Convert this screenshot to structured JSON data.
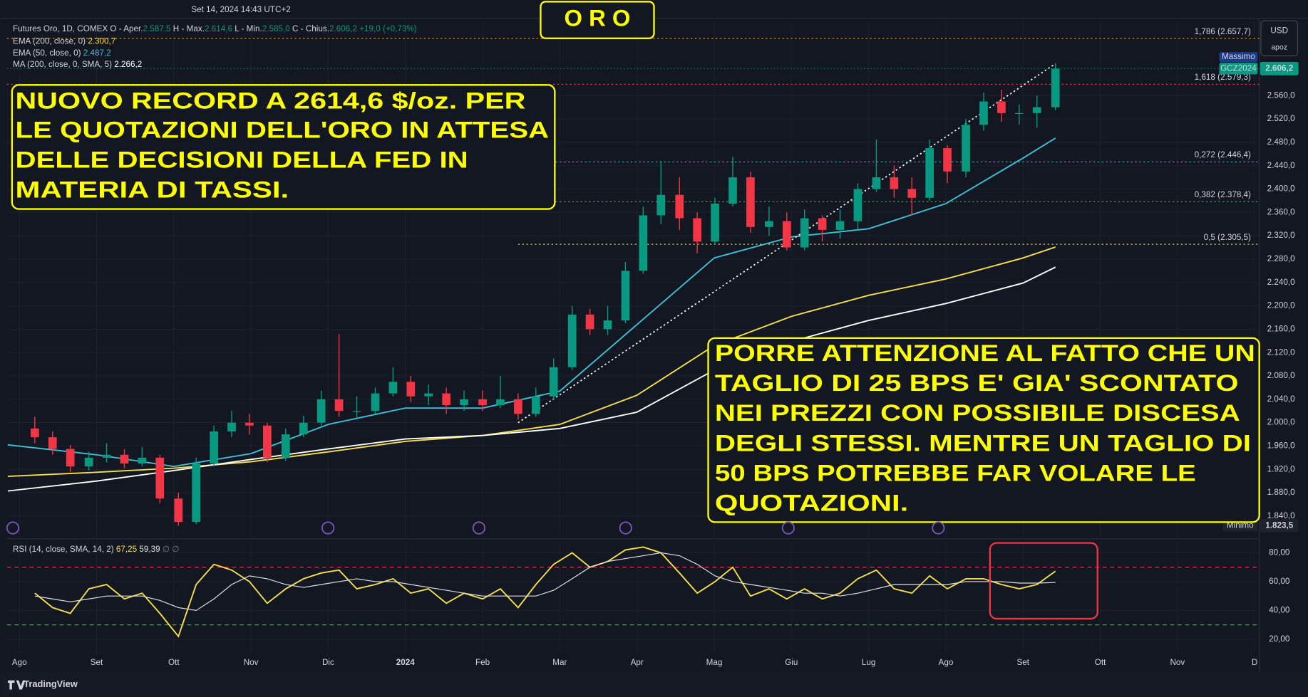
{
  "chart_data": {
    "type": "candlestick",
    "title": "O R O",
    "timestamp": "Set 14, 2024 14:43 UTC+2",
    "legend": {
      "symbol": "Futures Oro, 1D, COMEX",
      "open_label": "O - Aper.",
      "open": "2.587,5",
      "high_label": "H - Max.",
      "high": "2.614,6",
      "low_label": "L - Min.",
      "low": "2.585,0",
      "close_label": "C - Chius.",
      "close": "2.606,2",
      "change": "+19,0 (+0,73%)"
    },
    "x": [
      0.2,
      0.43,
      0.66,
      0.9,
      1.13,
      1.36,
      1.59,
      1.82,
      2.06,
      2.29,
      2.52,
      2.75,
      2.98,
      3.21,
      3.45,
      3.68,
      3.91,
      4.14,
      4.37,
      4.61,
      4.84,
      5.07,
      5.3,
      5.53,
      5.76,
      6.0,
      6.23,
      6.46,
      6.69,
      6.92,
      7.16,
      7.39,
      7.62,
      7.85,
      8.08,
      8.31,
      8.55,
      8.78,
      9.01,
      9.24,
      9.47,
      9.71,
      9.94,
      10.17,
      10.4,
      10.63,
      10.86,
      11.1,
      11.33,
      11.56,
      11.79,
      12.02,
      12.26,
      12.49,
      12.72,
      12.95,
      13.18,
      13.42
    ],
    "open": [
      1990,
      1975,
      1955,
      1925,
      1940,
      1945,
      1930,
      1940,
      1870,
      1830,
      1930,
      1985,
      2000,
      1995,
      1940,
      1980,
      2000,
      2040,
      2020,
      2020,
      2050,
      2070,
      2045,
      2050,
      2030,
      2040,
      2030,
      2040,
      2015,
      2045,
      2095,
      2185,
      2160,
      2175,
      2260,
      2355,
      2390,
      2350,
      2310,
      2375,
      2420,
      2335,
      2345,
      2300,
      2350,
      2330,
      2345,
      2400,
      2420,
      2400,
      2385,
      2470,
      2430,
      2510,
      2550,
      2530,
      2530,
      2540
    ],
    "high": [
      2010,
      1985,
      1962,
      1950,
      1965,
      1955,
      1958,
      1945,
      1880,
      1940,
      1995,
      2020,
      2015,
      2000,
      1990,
      2012,
      2055,
      2152,
      2045,
      2060,
      2095,
      2080,
      2065,
      2060,
      2055,
      2055,
      2080,
      2050,
      2060,
      2110,
      2200,
      2195,
      2200,
      2275,
      2370,
      2448,
      2420,
      2360,
      2385,
      2455,
      2430,
      2370,
      2360,
      2365,
      2355,
      2365,
      2410,
      2485,
      2440,
      2420,
      2485,
      2475,
      2520,
      2565,
      2570,
      2545,
      2560,
      2614.6
    ],
    "low": [
      1965,
      1945,
      1915,
      1918,
      1932,
      1922,
      1925,
      1862,
      1823.5,
      1826,
      1925,
      1975,
      1980,
      1932,
      1935,
      1975,
      1995,
      2010,
      2005,
      2015,
      2045,
      2035,
      2030,
      2015,
      2020,
      2020,
      2025,
      2005,
      2010,
      2040,
      2090,
      2150,
      2150,
      2170,
      2255,
      2340,
      2330,
      2290,
      2305,
      2370,
      2325,
      2320,
      2295,
      2295,
      2310,
      2315,
      2330,
      2395,
      2385,
      2355,
      2380,
      2410,
      2420,
      2500,
      2515,
      2510,
      2505,
      2535
    ],
    "close": [
      1975,
      1955,
      1925,
      1940,
      1945,
      1930,
      1940,
      1870,
      1830,
      1930,
      1985,
      2000,
      1995,
      1940,
      1980,
      2000,
      2040,
      2020,
      2020,
      2050,
      2070,
      2045,
      2050,
      2030,
      2040,
      2030,
      2040,
      2015,
      2045,
      2095,
      2185,
      2160,
      2175,
      2260,
      2355,
      2390,
      2350,
      2310,
      2375,
      2420,
      2335,
      2345,
      2300,
      2350,
      2330,
      2345,
      2400,
      2420,
      2400,
      2385,
      2470,
      2430,
      2510,
      2550,
      2530,
      2530,
      2540,
      2606.2
    ],
    "colors": {
      "up": "#089981",
      "down": "#f23645"
    },
    "xlim": [
      -0.16,
      16.06
    ],
    "ylim": [
      1804,
      2688
    ],
    "grid": true,
    "xticks": [
      {
        "value": 0,
        "label": "Ago"
      },
      {
        "value": 1,
        "label": "Set"
      },
      {
        "value": 2,
        "label": "Ott"
      },
      {
        "value": 3,
        "label": "Nov"
      },
      {
        "value": 4,
        "label": "Dic"
      },
      {
        "value": 5,
        "label": "2024"
      },
      {
        "value": 6,
        "label": "Feb"
      },
      {
        "value": 7,
        "label": "Mar"
      },
      {
        "value": 8,
        "label": "Apr"
      },
      {
        "value": 9,
        "label": "Mag"
      },
      {
        "value": 10,
        "label": "Giu"
      },
      {
        "value": 11,
        "label": "Lug"
      },
      {
        "value": 12,
        "label": "Ago"
      },
      {
        "value": 13,
        "label": "Set"
      },
      {
        "value": 14,
        "label": "Ott"
      },
      {
        "value": 15,
        "label": "Nov"
      },
      {
        "value": 16,
        "label": "D"
      }
    ],
    "yticks": [
      {
        "value": 1840,
        "label": "1.840,0"
      },
      {
        "value": 1880,
        "label": "1.880,0"
      },
      {
        "value": 1920,
        "label": "1.920,0"
      },
      {
        "value": 1960,
        "label": "1.960,0"
      },
      {
        "value": 2000,
        "label": "2.000,0"
      },
      {
        "value": 2040,
        "label": "2.040,0"
      },
      {
        "value": 2080,
        "label": "2.080,0"
      },
      {
        "value": 2120,
        "label": "2.120,0"
      },
      {
        "value": 2160,
        "label": "2.160,0"
      },
      {
        "value": 2200,
        "label": "2.200,0"
      },
      {
        "value": 2240,
        "label": "2.240,0"
      },
      {
        "value": 2280,
        "label": "2.280,0"
      },
      {
        "value": 2320,
        "label": "2.320,0"
      },
      {
        "value": 2360,
        "label": "2.360,0"
      },
      {
        "value": 2400,
        "label": "2.400,0"
      },
      {
        "value": 2440,
        "label": "2.440,0"
      },
      {
        "value": 2480,
        "label": "2.480,0"
      },
      {
        "value": 2520,
        "label": "2.520,0"
      },
      {
        "value": 2560,
        "label": "2.560,0"
      }
    ],
    "indicators": [
      {
        "name": "EMA (200, close, 0)",
        "value_label": "2.300,7",
        "color": "#f7e04b",
        "x": [
          -0.15,
          1,
          2,
          3,
          4,
          5,
          6,
          7,
          8,
          9,
          10,
          11,
          12,
          13,
          13.42
        ],
        "values": [
          1908,
          1915,
          1922,
          1933,
          1950,
          1968,
          1978,
          1997,
          2047,
          2132,
          2182,
          2218,
          2246,
          2282,
          2300.7
        ]
      },
      {
        "name": "EMA (50, close, 0)",
        "value_label": "2.487,2",
        "color": "#3fc1d9",
        "x": [
          -0.15,
          1,
          2,
          3,
          4,
          5,
          6,
          7,
          8,
          9,
          10,
          11,
          12,
          13,
          13.42
        ],
        "values": [
          1962,
          1945,
          1925,
          1947,
          1997,
          2025,
          2025,
          2054,
          2168,
          2282,
          2318,
          2332,
          2375,
          2453,
          2487.2
        ]
      },
      {
        "name": "MA (200, close, 0, SMA, 5)",
        "value_label": "2.266,2",
        "color": "#ffffff",
        "x": [
          -0.15,
          1,
          2,
          3,
          4,
          5,
          6,
          7,
          8,
          9,
          10,
          11,
          12,
          13,
          13.42
        ],
        "values": [
          1883,
          1900,
          1918,
          1937,
          1955,
          1972,
          1978,
          1990,
          2018,
          2090,
          2139,
          2175,
          2204,
          2239,
          2266.2
        ]
      }
    ],
    "fib_levels": [
      {
        "value": 2657.7,
        "label": "1,786 (2.657,7)",
        "color": "#ff9800"
      },
      {
        "value": 2579.3,
        "label": "1,618 (2.579,3)",
        "color": "#f23645"
      },
      {
        "value": 2446.4,
        "label": "0,272 (2.446,4)",
        "color": "#26c6da",
        "from": 6.46
      },
      {
        "value": 2378.4,
        "label": "0,382 (2.378,4)",
        "color": "#4caf50",
        "from": 6.46
      },
      {
        "value": 2305.5,
        "label": "0,5 (2.305,5)",
        "color": "#fdd835",
        "from": 6.46
      }
    ],
    "trendline": {
      "x": [
        6.46,
        13.42
      ],
      "y": [
        2000,
        2614.6
      ]
    },
    "last_price": {
      "symbol": "GCZ2024",
      "value": 2606.2,
      "label": "2.606,2",
      "color": "#089981"
    },
    "high_marker": {
      "label": "Massimo",
      "value": 2614.6
    },
    "low_marker": {
      "label": "Minimo",
      "value": 1823.5,
      "value_label": "1.823,5"
    },
    "currency": "USD",
    "unit": "apoz",
    "annotations": [
      {
        "lines": [
          "NUOVO RECORD A 2614,6 $/oz. PER",
          "LE QUOTAZIONI DELL'ORO IN ATTESA",
          "DELLE DECISIONI DELLA FED IN",
          "MATERIA DI TASSI."
        ]
      },
      {
        "lines": [
          "PORRE ATTENZIONE AL FATTO CHE UN",
          "TAGLIO DI 25 BPS E' GIA' SCONTATO",
          "NEI PREZZI CON POSSIBILE DISCESA",
          "DEGLI STESSI. MENTRE UN TAGLIO DI",
          "50 BPS POTREBBE FAR VOLARE LE",
          "QUOTAZIONI."
        ]
      }
    ],
    "rsi": {
      "type": "line",
      "title": "RSI (14, close, SMA, 14, 2)",
      "extra": "∅  ∅",
      "ylim": [
        10,
        88
      ],
      "yticks": [
        {
          "value": 20,
          "label": "20,00"
        },
        {
          "value": 40,
          "label": "40,00"
        },
        {
          "value": 60,
          "label": "60,00"
        },
        {
          "value": 80,
          "label": "80,00"
        }
      ],
      "bands": [
        {
          "value": 70,
          "color": "#f23645"
        },
        {
          "value": 30,
          "color": "#4caf50"
        }
      ],
      "x": [
        0.2,
        0.43,
        0.66,
        0.9,
        1.13,
        1.36,
        1.59,
        1.82,
        2.06,
        2.29,
        2.52,
        2.75,
        2.98,
        3.21,
        3.45,
        3.68,
        3.91,
        4.14,
        4.37,
        4.61,
        4.84,
        5.07,
        5.3,
        5.53,
        5.76,
        6.0,
        6.23,
        6.46,
        6.69,
        6.92,
        7.16,
        7.39,
        7.62,
        7.85,
        8.08,
        8.31,
        8.55,
        8.78,
        9.01,
        9.24,
        9.47,
        9.71,
        9.94,
        10.17,
        10.4,
        10.63,
        10.86,
        11.1,
        11.33,
        11.56,
        11.79,
        12.02,
        12.26,
        12.49,
        12.72,
        12.95,
        13.18,
        13.42
      ],
      "series": [
        {
          "value_label": "67,25",
          "color": "#f7e04b",
          "values": [
            52,
            42,
            38,
            55,
            58,
            48,
            52,
            38,
            22,
            58,
            72,
            68,
            60,
            45,
            55,
            62,
            66,
            68,
            55,
            58,
            62,
            52,
            55,
            45,
            52,
            48,
            55,
            42,
            58,
            72,
            80,
            70,
            74,
            82,
            84,
            80,
            66,
            52,
            60,
            70,
            50,
            55,
            48,
            55,
            48,
            52,
            62,
            68,
            55,
            52,
            64,
            55,
            62,
            62,
            58,
            55,
            58,
            67.25
          ]
        },
        {
          "value_label": "59,39",
          "color": "#e0e0e0",
          "values": [
            50,
            48,
            46,
            48,
            50,
            50,
            50,
            47,
            42,
            40,
            48,
            58,
            64,
            62,
            58,
            56,
            58,
            60,
            62,
            60,
            60,
            58,
            56,
            54,
            52,
            50,
            50,
            50,
            50,
            54,
            62,
            70,
            74,
            76,
            78,
            80,
            78,
            72,
            64,
            60,
            58,
            56,
            54,
            52,
            52,
            50,
            52,
            55,
            58,
            58,
            58,
            58,
            60,
            60,
            60,
            59,
            59,
            59.39
          ]
        }
      ]
    },
    "branding": "TradingView"
  }
}
